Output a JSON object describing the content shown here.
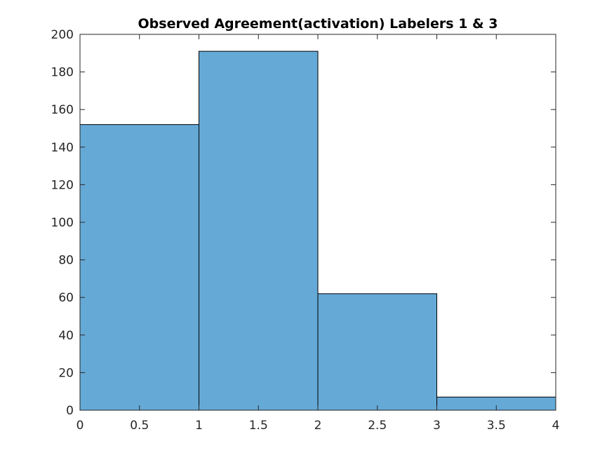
{
  "chart_data": {
    "type": "bar",
    "title": "Observed Agreement(activation) Labelers 1 & 3",
    "xlabel": "",
    "ylabel": "",
    "bins": [
      {
        "x0": 0,
        "x1": 1,
        "value": 152
      },
      {
        "x0": 1,
        "x1": 2,
        "value": 191
      },
      {
        "x0": 2,
        "x1": 3,
        "value": 62
      },
      {
        "x0": 3,
        "x1": 4,
        "value": 7
      }
    ],
    "xlim": [
      0,
      4
    ],
    "ylim": [
      0,
      200
    ],
    "xticks": [
      0,
      0.5,
      1,
      1.5,
      2,
      2.5,
      3,
      3.5,
      4
    ],
    "yticks": [
      0,
      20,
      40,
      60,
      80,
      100,
      120,
      140,
      160,
      180,
      200
    ],
    "grid": false,
    "bar_color": "#65a9d7",
    "edge_color": "#000000",
    "axis_color": "#262626"
  }
}
